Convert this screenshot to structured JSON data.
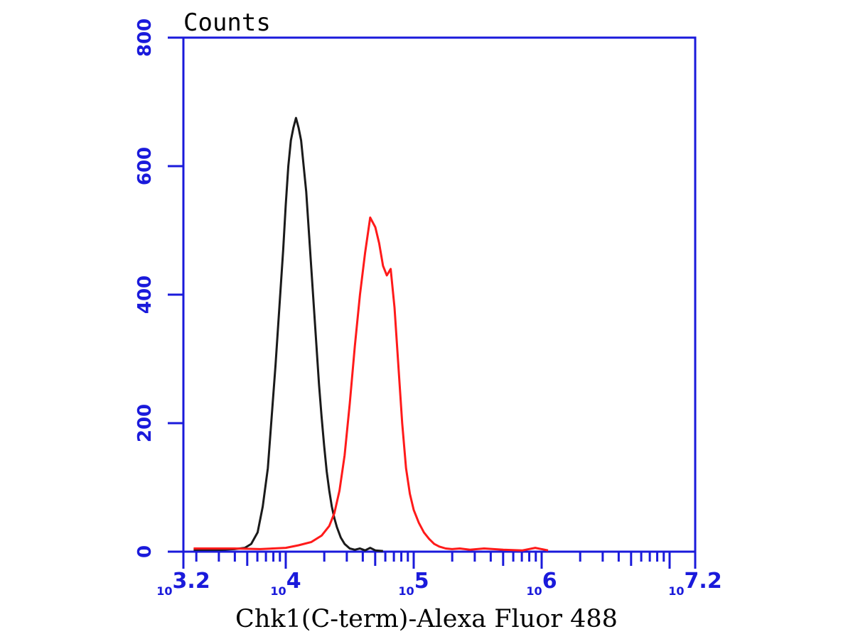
{
  "chart_data": {
    "type": "line",
    "ylabel": "Counts",
    "xlabel": "Chk1(C-term)-Alexa Fluor 488",
    "x_scale": "log",
    "xlim": [
      3.2,
      7.2
    ],
    "ylim": [
      0,
      800
    ],
    "y_ticks": [
      0,
      200,
      400,
      600,
      800
    ],
    "y_tick_labels": [
      "0",
      "200",
      "400",
      "600",
      "800"
    ],
    "x_tick_labels": [
      {
        "value": 3.2,
        "base": "10",
        "exp": "3.2"
      },
      {
        "value": 4,
        "base": "10",
        "exp": "4"
      },
      {
        "value": 5,
        "base": "10",
        "exp": "5"
      },
      {
        "value": 6,
        "base": "10",
        "exp": "6"
      },
      {
        "value": 7.2,
        "base": "10",
        "exp": "7.2"
      }
    ],
    "grid": false,
    "colors": {
      "axis": "#1a1adb",
      "black_series": "#1a1a1a",
      "red_series": "#ff1a1a"
    },
    "series": [
      {
        "color": "#1a1a1a",
        "x": [
          3.28,
          3.5,
          3.6,
          3.68,
          3.73,
          3.78,
          3.82,
          3.86,
          3.89,
          3.92,
          3.95,
          3.98,
          4.0,
          4.02,
          4.04,
          4.06,
          4.08,
          4.1,
          4.12,
          4.14,
          4.16,
          4.18,
          4.2,
          4.22,
          4.24,
          4.26,
          4.28,
          4.3,
          4.32,
          4.34,
          4.36,
          4.38,
          4.4,
          4.43,
          4.46,
          4.5,
          4.54,
          4.58,
          4.62,
          4.66,
          4.7,
          4.76
        ],
        "y": [
          3,
          3,
          4,
          6,
          12,
          30,
          70,
          130,
          210,
          290,
          380,
          470,
          540,
          600,
          640,
          660,
          675,
          660,
          640,
          600,
          560,
          500,
          440,
          380,
          320,
          260,
          210,
          165,
          125,
          95,
          70,
          52,
          38,
          22,
          12,
          5,
          3,
          5,
          2,
          6,
          2,
          1
        ]
      },
      {
        "color": "#ff1a1a",
        "x": [
          3.28,
          3.6,
          3.8,
          4.0,
          4.1,
          4.2,
          4.28,
          4.34,
          4.38,
          4.42,
          4.46,
          4.5,
          4.54,
          4.58,
          4.62,
          4.66,
          4.7,
          4.73,
          4.76,
          4.79,
          4.82,
          4.85,
          4.88,
          4.91,
          4.94,
          4.97,
          5.0,
          5.04,
          5.08,
          5.12,
          5.16,
          5.2,
          5.25,
          5.3,
          5.36,
          5.44,
          5.55,
          5.7,
          5.85,
          5.95,
          6.05
        ],
        "y": [
          5,
          5,
          4,
          6,
          10,
          15,
          25,
          40,
          60,
          95,
          150,
          230,
          320,
          400,
          465,
          520,
          505,
          480,
          445,
          430,
          440,
          380,
          290,
          200,
          130,
          90,
          65,
          45,
          30,
          20,
          12,
          8,
          5,
          4,
          5,
          3,
          5,
          3,
          2,
          6,
          2
        ]
      }
    ]
  }
}
